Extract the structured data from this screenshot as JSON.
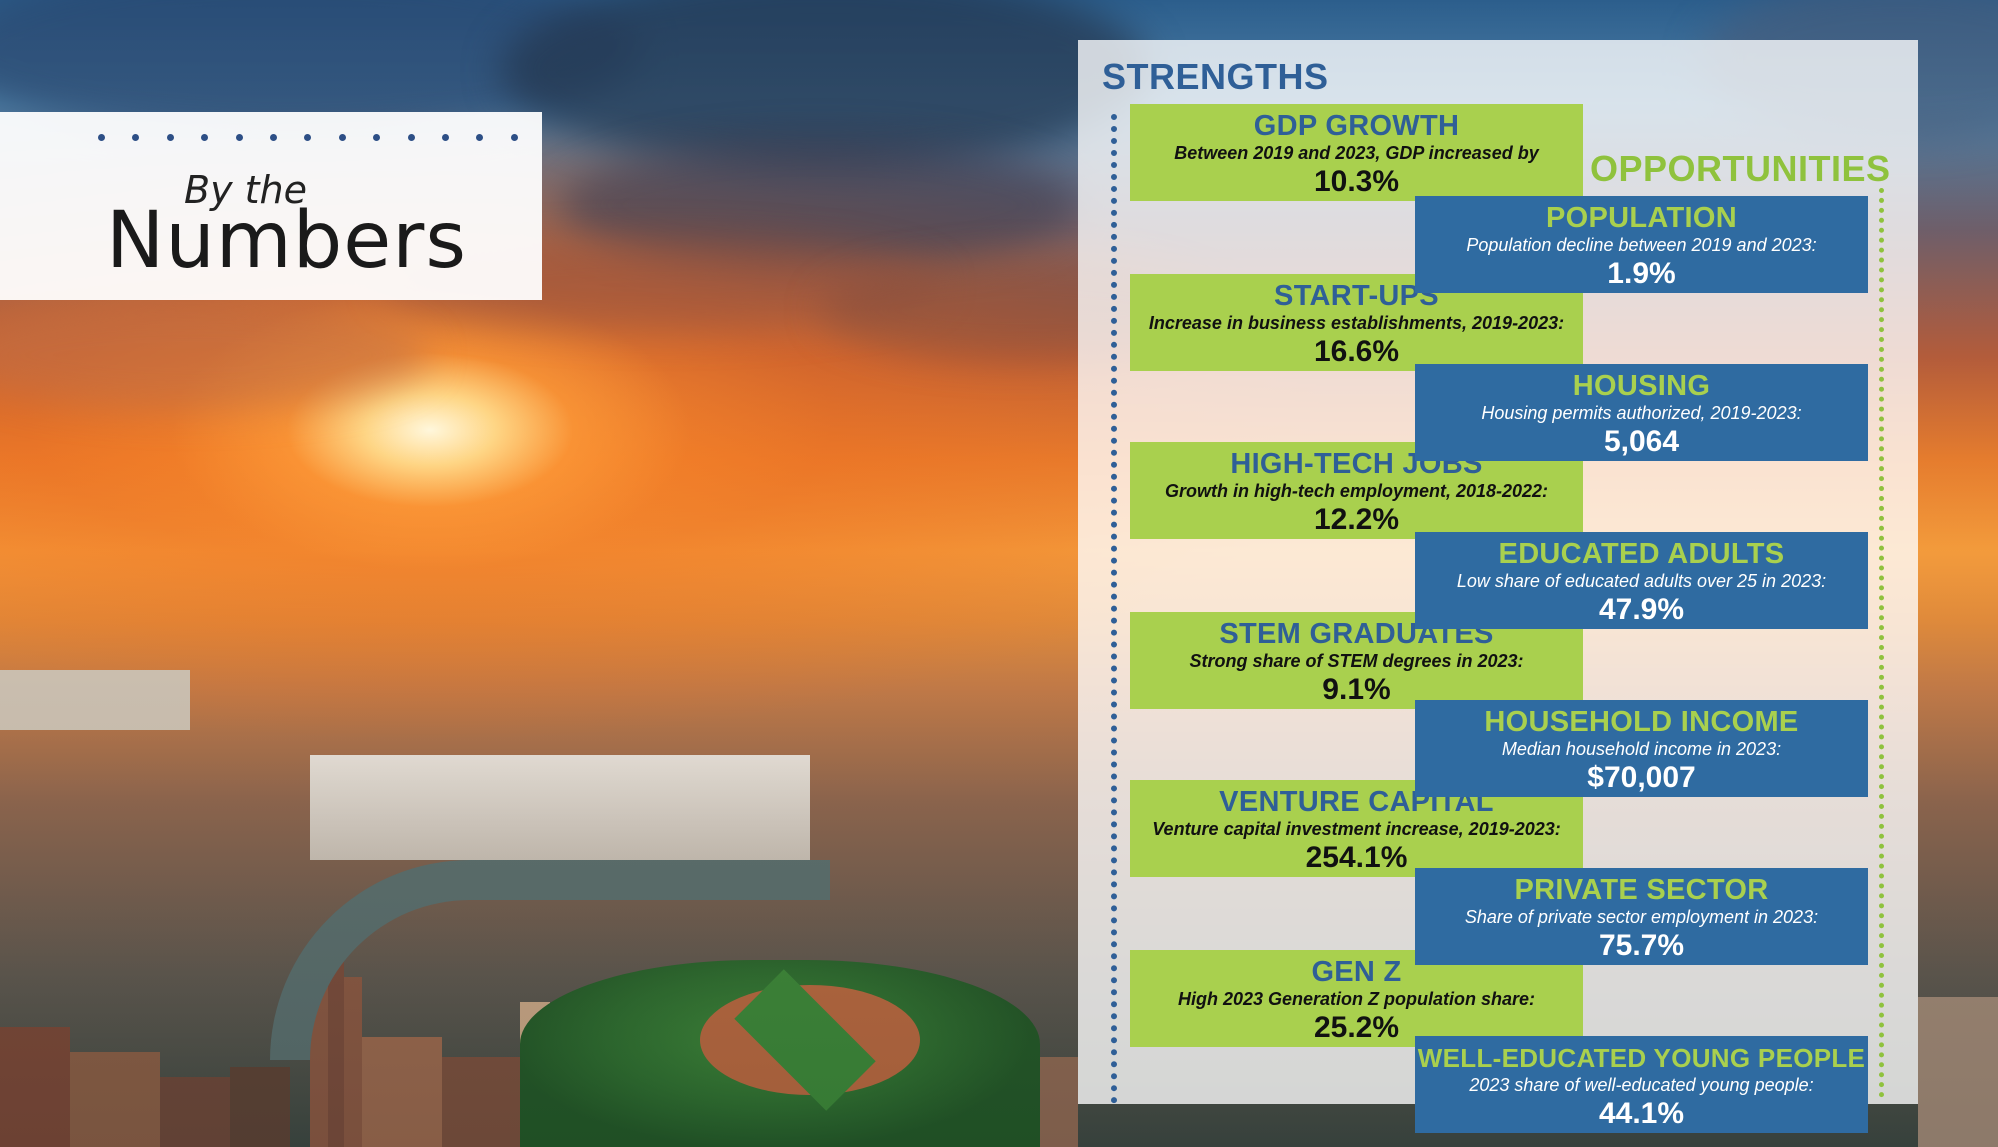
{
  "title": {
    "line1": "By the",
    "line2": "Numbers"
  },
  "strengths": {
    "heading": "STRENGTHS",
    "items": [
      {
        "title": "GDP GROWTH",
        "desc": "Between 2019 and 2023, GDP increased by",
        "value": "10.3%"
      },
      {
        "title": "START-UPS",
        "desc": "Increase in business establishments, 2019-2023:",
        "value": "16.6%"
      },
      {
        "title": "HIGH-TECH JOBS",
        "desc": "Growth in high-tech employment, 2018-2022:",
        "value": "12.2%"
      },
      {
        "title": "STEM GRADUATES",
        "desc": "Strong share of STEM degrees in 2023:",
        "value": "9.1%"
      },
      {
        "title": "VENTURE CAPITAL",
        "desc": "Venture capital investment increase, 2019-2023:",
        "value": "254.1%"
      },
      {
        "title": "GEN Z",
        "desc": "High 2023 Generation Z population share:",
        "value": "25.2%"
      }
    ]
  },
  "opportunities": {
    "heading": "OPPORTUNITIES",
    "items": [
      {
        "title": "POPULATION",
        "desc": "Population decline between 2019 and 2023:",
        "value": "1.9%"
      },
      {
        "title": "HOUSING",
        "desc": "Housing permits authorized, 2019-2023:",
        "value": "5,064"
      },
      {
        "title": "EDUCATED ADULTS",
        "desc": "Low share of educated adults over 25 in 2023:",
        "value": "47.9%"
      },
      {
        "title": "HOUSEHOLD INCOME",
        "desc": "Median household income in 2023:",
        "value": "$70,007"
      },
      {
        "title": "PRIVATE SECTOR",
        "desc": "Share of private sector employment in 2023:",
        "value": "75.7%"
      },
      {
        "title": "WELL-EDUCATED YOUNG PEOPLE",
        "desc": "2023 share of well-educated young people:",
        "value": "44.1%"
      }
    ]
  },
  "colors": {
    "strength_card": "#a9d04e",
    "opportunity_card": "#2f6ba1",
    "strength_heading": "#2f5f97",
    "opportunity_heading": "#8fc23d"
  }
}
